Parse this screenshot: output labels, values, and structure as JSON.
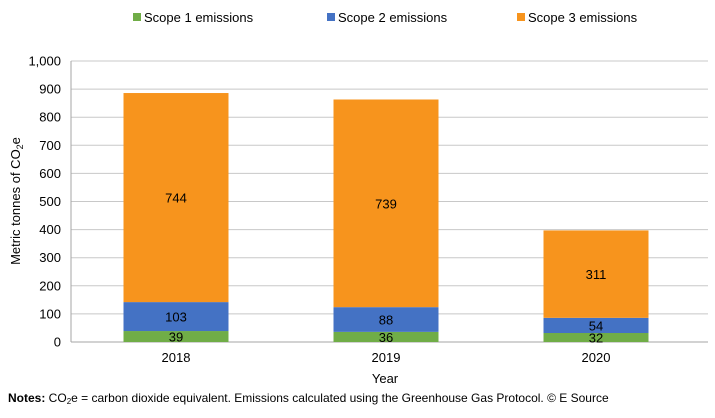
{
  "chart_data": {
    "type": "bar",
    "stacked": true,
    "categories": [
      "2018",
      "2019",
      "2020"
    ],
    "series": [
      {
        "name": "Scope 1 emissions",
        "values": [
          39,
          36,
          32
        ],
        "color": "#70ad47"
      },
      {
        "name": "Scope 2 emissions",
        "values": [
          103,
          88,
          54
        ],
        "color": "#4472c4"
      },
      {
        "name": "Scope 3 emissions",
        "values": [
          744,
          739,
          311
        ],
        "color": "#f7941d"
      }
    ],
    "xlabel": "Year",
    "ylabel_main": "Metric tonnes of CO",
    "ylabel_sub": "2",
    "ylabel_end": "e",
    "ylim": [
      0,
      1000
    ],
    "yticks": [
      "0",
      "100",
      "200",
      "300",
      "400",
      "500",
      "600",
      "700",
      "800",
      "900",
      "1,000"
    ],
    "grid": true,
    "legend": "top"
  },
  "notes": {
    "label": "Notes:",
    "pre": " CO",
    "sub": "2",
    "text": "e = carbon dioxide equivalent. Emissions calculated using the Greenhouse Gas Protocol. © E Source"
  }
}
